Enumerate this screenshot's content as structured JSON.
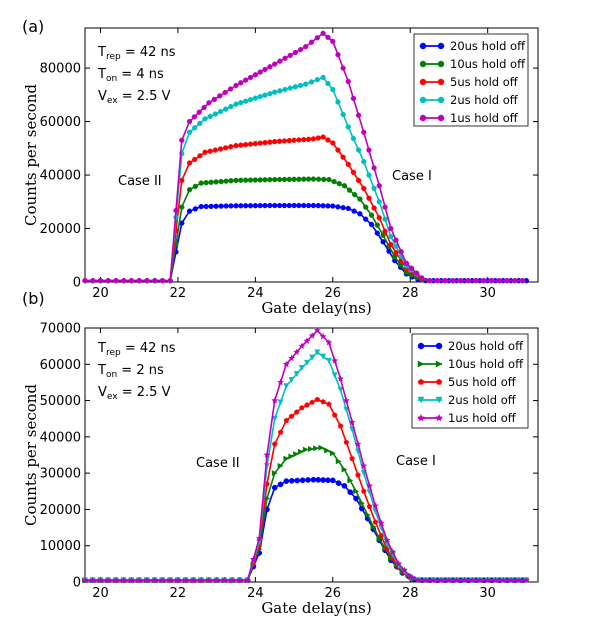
{
  "chart_data": [
    {
      "type": "line",
      "panel_label": "(a)",
      "xlabel": "Gate delay(ns)",
      "ylabel": "Counts per second",
      "xlim": [
        19.6,
        31.3
      ],
      "ylim": [
        0,
        95000
      ],
      "xticks": [
        20,
        22,
        24,
        26,
        28,
        30
      ],
      "yticks": [
        0,
        20000,
        40000,
        60000,
        80000
      ],
      "grid": false,
      "legend_position": "top-right",
      "params": [
        {
          "label": "T",
          "sub": "rep",
          "value": " = 42 ns"
        },
        {
          "label": "T",
          "sub": "on",
          "value": " = 4 ns"
        },
        {
          "label": "V",
          "sub": "ex",
          "value": " = 2.5 V"
        }
      ],
      "annotations": [
        "Case II",
        "Case I"
      ],
      "series": [
        {
          "name": "20us hold off",
          "color": "#0000ff",
          "marker": "circle",
          "plateau": [
            {
              "x": 22.1,
              "y": 22000
            },
            {
              "x": 22.3,
              "y": 26500
            },
            {
              "x": 22.6,
              "y": 28200
            },
            {
              "x": 23.5,
              "y": 28500
            },
            {
              "x": 24.5,
              "y": 28600
            },
            {
              "x": 25.5,
              "y": 28600
            },
            {
              "x": 26.0,
              "y": 28400
            },
            {
              "x": 26.4,
              "y": 27500
            },
            {
              "x": 26.7,
              "y": 25500
            },
            {
              "x": 27.0,
              "y": 21500
            },
            {
              "x": 27.3,
              "y": 15000
            },
            {
              "x": 27.6,
              "y": 8000
            },
            {
              "x": 27.9,
              "y": 3000
            },
            {
              "x": 28.2,
              "y": 800
            }
          ]
        },
        {
          "name": "10us hold off",
          "color": "#008000",
          "marker": "circle",
          "plateau": [
            {
              "x": 22.1,
              "y": 28000
            },
            {
              "x": 22.3,
              "y": 34500
            },
            {
              "x": 22.6,
              "y": 37000
            },
            {
              "x": 23.5,
              "y": 38000
            },
            {
              "x": 24.5,
              "y": 38300
            },
            {
              "x": 25.5,
              "y": 38500
            },
            {
              "x": 25.9,
              "y": 38300
            },
            {
              "x": 26.3,
              "y": 36000
            },
            {
              "x": 26.7,
              "y": 31000
            },
            {
              "x": 27.0,
              "y": 25000
            },
            {
              "x": 27.3,
              "y": 17500
            },
            {
              "x": 27.6,
              "y": 9500
            },
            {
              "x": 27.9,
              "y": 3500
            },
            {
              "x": 28.3,
              "y": 800
            }
          ]
        },
        {
          "name": "5us hold off",
          "color": "#ff0000",
          "marker": "circle",
          "plateau": [
            {
              "x": 22.1,
              "y": 38000
            },
            {
              "x": 22.3,
              "y": 44500
            },
            {
              "x": 22.7,
              "y": 48500
            },
            {
              "x": 23.5,
              "y": 51000
            },
            {
              "x": 24.5,
              "y": 52500
            },
            {
              "x": 25.5,
              "y": 53500
            },
            {
              "x": 25.75,
              "y": 54200
            },
            {
              "x": 26.0,
              "y": 52000
            },
            {
              "x": 26.4,
              "y": 44000
            },
            {
              "x": 26.8,
              "y": 35000
            },
            {
              "x": 27.2,
              "y": 24000
            },
            {
              "x": 27.5,
              "y": 14000
            },
            {
              "x": 27.9,
              "y": 5000
            },
            {
              "x": 28.3,
              "y": 1200
            }
          ]
        },
        {
          "name": "2us hold off",
          "color": "#00bfbf",
          "marker": "circle",
          "plateau": [
            {
              "x": 22.1,
              "y": 48000
            },
            {
              "x": 22.3,
              "y": 56000
            },
            {
              "x": 22.7,
              "y": 61000
            },
            {
              "x": 23.5,
              "y": 66500
            },
            {
              "x": 24.5,
              "y": 71000
            },
            {
              "x": 25.3,
              "y": 74000
            },
            {
              "x": 25.75,
              "y": 76500
            },
            {
              "x": 26.0,
              "y": 72000
            },
            {
              "x": 26.4,
              "y": 58000
            },
            {
              "x": 26.8,
              "y": 45000
            },
            {
              "x": 27.2,
              "y": 30000
            },
            {
              "x": 27.5,
              "y": 17000
            },
            {
              "x": 27.9,
              "y": 6000
            },
            {
              "x": 28.3,
              "y": 1500
            }
          ]
        },
        {
          "name": "1us hold off",
          "color": "#bf00bf",
          "marker": "circle",
          "plateau": [
            {
              "x": 22.1,
              "y": 53000
            },
            {
              "x": 22.3,
              "y": 60000
            },
            {
              "x": 22.8,
              "y": 67000
            },
            {
              "x": 23.5,
              "y": 73500
            },
            {
              "x": 24.5,
              "y": 81500
            },
            {
              "x": 25.3,
              "y": 88000
            },
            {
              "x": 25.75,
              "y": 93000
            },
            {
              "x": 26.0,
              "y": 90000
            },
            {
              "x": 26.4,
              "y": 75000
            },
            {
              "x": 26.8,
              "y": 56000
            },
            {
              "x": 27.2,
              "y": 36000
            },
            {
              "x": 27.5,
              "y": 20000
            },
            {
              "x": 27.9,
              "y": 7000
            },
            {
              "x": 28.3,
              "y": 1500
            }
          ]
        }
      ]
    },
    {
      "type": "line",
      "panel_label": "(b)",
      "xlabel": "Gate delay(ns)",
      "ylabel": "Counts per second",
      "xlim": [
        19.6,
        31.3
      ],
      "ylim": [
        0,
        70000
      ],
      "xticks": [
        20,
        22,
        24,
        26,
        28,
        30
      ],
      "yticks": [
        0,
        10000,
        20000,
        30000,
        40000,
        50000,
        60000,
        70000
      ],
      "grid": false,
      "legend_position": "top-right",
      "params": [
        {
          "label": "T",
          "sub": "rep",
          "value": " = 42 ns"
        },
        {
          "label": "T",
          "sub": "on",
          "value": " = 2 ns"
        },
        {
          "label": "V",
          "sub": "ex",
          "value": " = 2.5 V"
        }
      ],
      "annotations": [
        "Case II",
        "Case I"
      ],
      "series": [
        {
          "name": "20us hold off",
          "color": "#0000ff",
          "marker": "circle",
          "plateau": [
            {
              "x": 24.1,
              "y": 8000
            },
            {
              "x": 24.3,
              "y": 20000
            },
            {
              "x": 24.5,
              "y": 26000
            },
            {
              "x": 24.8,
              "y": 27800
            },
            {
              "x": 25.5,
              "y": 28200
            },
            {
              "x": 26.0,
              "y": 28000
            },
            {
              "x": 26.3,
              "y": 26500
            },
            {
              "x": 26.6,
              "y": 23000
            },
            {
              "x": 26.9,
              "y": 17500
            },
            {
              "x": 27.2,
              "y": 11500
            },
            {
              "x": 27.5,
              "y": 6000
            },
            {
              "x": 27.8,
              "y": 2500
            },
            {
              "x": 28.1,
              "y": 800
            }
          ]
        },
        {
          "name": "10us hold off",
          "color": "#008000",
          "marker": "triangle-right",
          "plateau": [
            {
              "x": 24.1,
              "y": 9000
            },
            {
              "x": 24.3,
              "y": 23000
            },
            {
              "x": 24.5,
              "y": 30000
            },
            {
              "x": 24.8,
              "y": 34000
            },
            {
              "x": 25.3,
              "y": 36500
            },
            {
              "x": 25.7,
              "y": 37000
            },
            {
              "x": 26.0,
              "y": 35500
            },
            {
              "x": 26.3,
              "y": 31000
            },
            {
              "x": 26.6,
              "y": 25000
            },
            {
              "x": 26.9,
              "y": 18500
            },
            {
              "x": 27.2,
              "y": 12000
            },
            {
              "x": 27.5,
              "y": 6500
            },
            {
              "x": 27.8,
              "y": 2800
            },
            {
              "x": 28.1,
              "y": 900
            }
          ]
        },
        {
          "name": "5us hold off",
          "color": "#ff0000",
          "marker": "pentagon",
          "plateau": [
            {
              "x": 24.1,
              "y": 10000
            },
            {
              "x": 24.3,
              "y": 27000
            },
            {
              "x": 24.5,
              "y": 38000
            },
            {
              "x": 24.8,
              "y": 44500
            },
            {
              "x": 25.2,
              "y": 48000
            },
            {
              "x": 25.6,
              "y": 50300
            },
            {
              "x": 25.9,
              "y": 49000
            },
            {
              "x": 26.2,
              "y": 43000
            },
            {
              "x": 26.5,
              "y": 34000
            },
            {
              "x": 26.8,
              "y": 25000
            },
            {
              "x": 27.1,
              "y": 16500
            },
            {
              "x": 27.4,
              "y": 9000
            },
            {
              "x": 27.7,
              "y": 4000
            },
            {
              "x": 28.0,
              "y": 1200
            }
          ]
        },
        {
          "name": "2us hold off",
          "color": "#00bfbf",
          "marker": "triangle-down",
          "plateau": [
            {
              "x": 24.1,
              "y": 11000
            },
            {
              "x": 24.3,
              "y": 32000
            },
            {
              "x": 24.5,
              "y": 45000
            },
            {
              "x": 24.8,
              "y": 54000
            },
            {
              "x": 25.2,
              "y": 59000
            },
            {
              "x": 25.6,
              "y": 63300
            },
            {
              "x": 25.9,
              "y": 61000
            },
            {
              "x": 26.2,
              "y": 53000
            },
            {
              "x": 26.5,
              "y": 42000
            },
            {
              "x": 26.8,
              "y": 30000
            },
            {
              "x": 27.1,
              "y": 19500
            },
            {
              "x": 27.4,
              "y": 10500
            },
            {
              "x": 27.7,
              "y": 4500
            },
            {
              "x": 28.0,
              "y": 1300
            }
          ]
        },
        {
          "name": "1us hold off",
          "color": "#bf00bf",
          "marker": "star",
          "plateau": [
            {
              "x": 24.1,
              "y": 12000
            },
            {
              "x": 24.3,
              "y": 35000
            },
            {
              "x": 24.5,
              "y": 50000
            },
            {
              "x": 24.8,
              "y": 60000
            },
            {
              "x": 25.2,
              "y": 65000
            },
            {
              "x": 25.6,
              "y": 69300
            },
            {
              "x": 25.9,
              "y": 66000
            },
            {
              "x": 26.2,
              "y": 56000
            },
            {
              "x": 26.5,
              "y": 44000
            },
            {
              "x": 26.8,
              "y": 32000
            },
            {
              "x": 27.1,
              "y": 21000
            },
            {
              "x": 27.4,
              "y": 11500
            },
            {
              "x": 27.7,
              "y": 5000
            },
            {
              "x": 28.0,
              "y": 1500
            }
          ]
        }
      ]
    }
  ]
}
